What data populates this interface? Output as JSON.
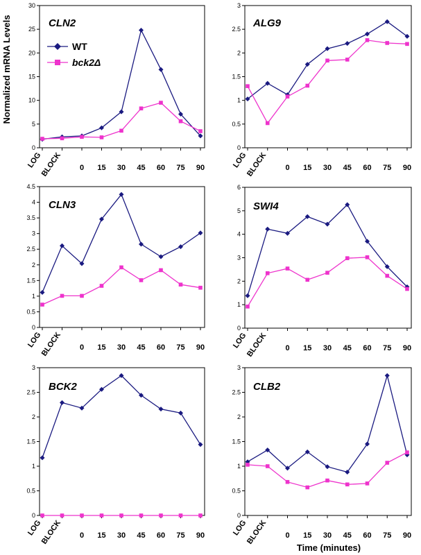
{
  "figure": {
    "ylabel": "Normalized mRNA Levels",
    "xlabel": "Time (minutes)",
    "legend": [
      {
        "name": "WT",
        "color": "#1a1a80",
        "marker": "diamond"
      },
      {
        "name": "bck2Δ",
        "color": "#ee33cc",
        "marker": "square"
      }
    ]
  },
  "chart_data": [
    {
      "type": "line",
      "title": "CLN2",
      "categories": [
        "LOG",
        "BLOCK",
        "0",
        "15",
        "30",
        "45",
        "60",
        "75",
        "90"
      ],
      "ylim": [
        0,
        30
      ],
      "yticks": [
        0,
        5,
        10,
        15,
        20,
        25,
        30
      ],
      "series": [
        {
          "name": "WT",
          "values": [
            1.8,
            2.3,
            2.5,
            4.2,
            7.6,
            24.8,
            16.5,
            7.1,
            2.5
          ]
        },
        {
          "name": "bck2Δ",
          "values": [
            1.9,
            2.0,
            2.3,
            2.2,
            3.6,
            8.3,
            9.5,
            5.6,
            3.5
          ]
        }
      ]
    },
    {
      "type": "line",
      "title": "ALG9",
      "categories": [
        "LOG",
        "BLOCK",
        "0",
        "15",
        "30",
        "45",
        "60",
        "75",
        "90"
      ],
      "ylim": [
        0,
        3
      ],
      "yticks": [
        0,
        0.5,
        1,
        1.5,
        2,
        2.5,
        3
      ],
      "series": [
        {
          "name": "WT",
          "values": [
            1.03,
            1.36,
            1.12,
            1.76,
            2.09,
            2.2,
            2.4,
            2.66,
            2.35
          ]
        },
        {
          "name": "bck2Δ",
          "values": [
            1.3,
            0.52,
            1.08,
            1.31,
            1.84,
            1.86,
            2.27,
            2.21,
            2.19
          ]
        }
      ]
    },
    {
      "type": "line",
      "title": "CLN3",
      "categories": [
        "LOG",
        "BLOCK",
        "0",
        "15",
        "30",
        "45",
        "60",
        "75",
        "90"
      ],
      "ylim": [
        0,
        4.5
      ],
      "yticks": [
        0,
        0.5,
        1,
        1.5,
        2,
        2.5,
        3,
        3.5,
        4,
        4.5
      ],
      "series": [
        {
          "name": "WT",
          "values": [
            1.12,
            2.61,
            2.04,
            3.46,
            4.25,
            2.66,
            2.26,
            2.58,
            3.02
          ]
        },
        {
          "name": "bck2Δ",
          "values": [
            0.73,
            1.01,
            1.01,
            1.33,
            1.92,
            1.51,
            1.83,
            1.37,
            1.27
          ]
        }
      ]
    },
    {
      "type": "line",
      "title": "SWI4",
      "categories": [
        "LOG",
        "BLOCK",
        "0",
        "15",
        "30",
        "45",
        "60",
        "75",
        "90"
      ],
      "ylim": [
        0,
        6
      ],
      "yticks": [
        0,
        1,
        2,
        3,
        4,
        5,
        6
      ],
      "series": [
        {
          "name": "WT",
          "values": [
            1.38,
            4.22,
            4.04,
            4.75,
            4.43,
            5.26,
            3.7,
            2.62,
            1.76
          ]
        },
        {
          "name": "bck2Δ",
          "values": [
            0.92,
            2.34,
            2.54,
            2.06,
            2.36,
            2.98,
            3.02,
            2.23,
            1.67
          ]
        }
      ]
    },
    {
      "type": "line",
      "title": "BCK2",
      "categories": [
        "LOG",
        "BLOCK",
        "0",
        "15",
        "30",
        "45",
        "60",
        "75",
        "90"
      ],
      "ylim": [
        0,
        3
      ],
      "yticks": [
        0,
        0.5,
        1,
        1.5,
        2,
        2.5,
        3
      ],
      "series": [
        {
          "name": "WT",
          "values": [
            1.17,
            2.29,
            2.18,
            2.56,
            2.84,
            2.44,
            2.16,
            2.08,
            1.44
          ]
        },
        {
          "name": "bck2Δ",
          "values": [
            0,
            0,
            0,
            0,
            0,
            0,
            0,
            0,
            0
          ]
        }
      ]
    },
    {
      "type": "line",
      "title": "CLB2",
      "categories": [
        "LOG",
        "BLOCK",
        "0",
        "15",
        "30",
        "45",
        "60",
        "75",
        "90"
      ],
      "ylim": [
        0,
        3
      ],
      "yticks": [
        0,
        0.5,
        1,
        1.5,
        2,
        2.5,
        3
      ],
      "series": [
        {
          "name": "WT",
          "values": [
            1.09,
            1.33,
            0.96,
            1.29,
            0.99,
            0.88,
            1.45,
            2.84,
            1.23
          ]
        },
        {
          "name": "bck2Δ",
          "values": [
            1.03,
            1.0,
            0.68,
            0.57,
            0.71,
            0.63,
            0.65,
            1.07,
            1.28
          ]
        }
      ]
    }
  ]
}
